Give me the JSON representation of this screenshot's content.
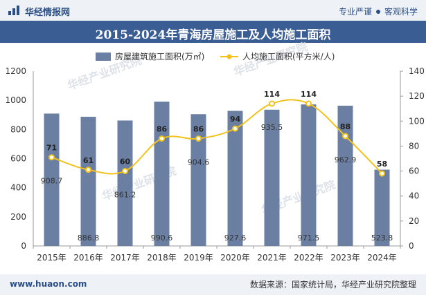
{
  "header": {
    "brand": "华经情报网",
    "tag1": "专业严谨",
    "tag2": "客观科学"
  },
  "footer": {
    "website": "www.huaon.com",
    "source": "数据来源：国家统计局，华经产业研究院整理"
  },
  "watermark": "华经产业研究院",
  "colors": {
    "bar": "#6b7fa3",
    "line": "#f2c21b",
    "title_bg": "#3a5d93"
  },
  "chart_data": {
    "type": "bar+line",
    "title": "2015-2024年青海房屋施工及人均施工面积",
    "categories": [
      "2015年",
      "2016年",
      "2017年",
      "2018年",
      "2019年",
      "2020年",
      "2021年",
      "2022年",
      "2023年",
      "2024年"
    ],
    "series": [
      {
        "name": "房屋建筑施工面积(万㎡)",
        "type": "bar",
        "axis": "left",
        "values": [
          908.7,
          886.8,
          861.2,
          990.6,
          904.6,
          927.6,
          935.5,
          971.5,
          962.9,
          523.8
        ],
        "labels": [
          "908.7",
          "886.8",
          "861.2",
          "990.6",
          "904.6",
          "927.6",
          "935.5",
          "971.5",
          "962.9",
          "523.8"
        ]
      },
      {
        "name": "人均施工面积(平方米/人)",
        "type": "line",
        "axis": "right",
        "values": [
          71,
          61,
          60,
          86,
          86,
          94,
          114,
          114,
          88,
          58
        ],
        "labels": [
          "71",
          "61",
          "60",
          "86",
          "86",
          "94",
          "114",
          "114",
          "88",
          "58"
        ]
      }
    ],
    "yleft": {
      "min": 0,
      "max": 1200,
      "ticks": [
        "0",
        "200",
        "400",
        "600",
        "800",
        "1000",
        "1200"
      ]
    },
    "yright": {
      "min": 0,
      "max": 140,
      "ticks": [
        "0",
        "20",
        "40",
        "60",
        "80",
        "100",
        "120",
        "140"
      ]
    },
    "legend_position": "top-center",
    "grid": false
  }
}
